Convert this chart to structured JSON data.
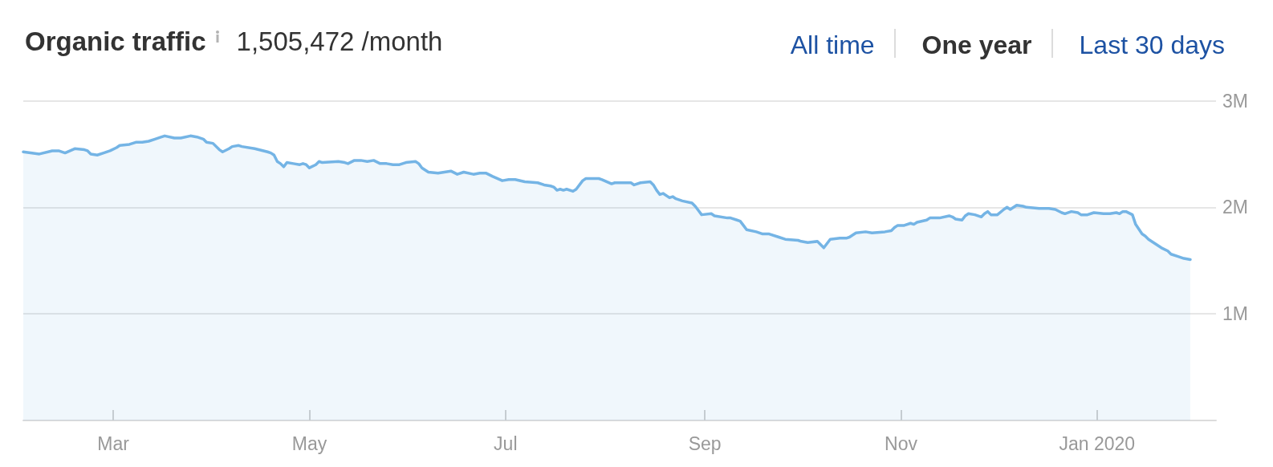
{
  "chart_data": {
    "type": "area",
    "title": "Organic traffic",
    "subtitle": "1,505,472 /month",
    "annotations": [
      "All time",
      "One year",
      "Last 30 days"
    ],
    "color": "#74b4e5",
    "x": [
      "2019-02-01",
      "2019-02-06",
      "2019-02-10",
      "2019-02-12",
      "2019-02-14",
      "2019-02-17",
      "2019-02-20",
      "2019-02-21",
      "2019-02-22",
      "2019-02-24",
      "2019-02-26",
      "2019-02-28",
      "2019-03-02",
      "2019-03-03",
      "2019-03-06",
      "2019-03-08",
      "2019-03-10",
      "2019-03-12",
      "2019-03-14",
      "2019-03-16",
      "2019-03-17",
      "2019-03-20",
      "2019-03-22",
      "2019-03-25",
      "2019-03-27",
      "2019-03-29",
      "2019-03-30",
      "2019-04-01",
      "2019-04-03",
      "2019-04-04",
      "2019-04-06",
      "2019-04-07",
      "2019-04-09",
      "2019-04-10",
      "2019-04-14",
      "2019-04-18",
      "2019-04-19",
      "2019-04-20",
      "2019-04-21",
      "2019-04-22",
      "2019-04-23",
      "2019-04-24",
      "2019-04-26",
      "2019-04-28",
      "2019-04-29",
      "2019-04-30",
      "2019-05-01",
      "2019-05-03",
      "2019-05-04",
      "2019-05-05",
      "2019-05-10",
      "2019-05-12",
      "2019-05-13",
      "2019-05-15",
      "2019-05-17",
      "2019-05-19",
      "2019-05-21",
      "2019-05-23",
      "2019-05-25",
      "2019-05-27",
      "2019-05-29",
      "2019-05-31",
      "2019-06-03",
      "2019-06-04",
      "2019-06-05",
      "2019-06-07",
      "2019-06-10",
      "2019-06-12",
      "2019-06-14",
      "2019-06-16",
      "2019-06-18",
      "2019-06-21",
      "2019-06-23",
      "2019-06-25",
      "2019-06-27",
      "2019-06-30",
      "2019-07-02",
      "2019-07-04",
      "2019-07-07",
      "2019-07-11",
      "2019-07-13",
      "2019-07-15",
      "2019-07-16",
      "2019-07-17",
      "2019-07-18",
      "2019-07-19",
      "2019-07-20",
      "2019-07-22",
      "2019-07-23",
      "2019-07-25",
      "2019-07-26",
      "2019-07-30",
      "2019-07-31",
      "2019-08-03",
      "2019-08-04",
      "2019-08-09",
      "2019-08-10",
      "2019-08-12",
      "2019-08-15",
      "2019-08-16",
      "2019-08-17",
      "2019-08-18",
      "2019-08-19",
      "2019-08-21",
      "2019-08-22",
      "2019-08-23",
      "2019-08-25",
      "2019-08-28",
      "2019-08-29",
      "2019-08-30",
      "2019-08-31",
      "2019-09-03",
      "2019-09-04",
      "2019-09-08",
      "2019-09-09",
      "2019-09-11",
      "2019-09-12",
      "2019-09-13",
      "2019-09-14",
      "2019-09-17",
      "2019-09-19",
      "2019-09-21",
      "2019-09-24",
      "2019-09-26",
      "2019-09-30",
      "2019-10-01",
      "2019-10-03",
      "2019-10-06",
      "2019-10-08",
      "2019-10-10",
      "2019-10-13",
      "2019-10-15",
      "2019-10-16",
      "2019-10-18",
      "2019-10-21",
      "2019-10-23",
      "2019-10-27",
      "2019-10-29",
      "2019-10-30",
      "2019-10-31",
      "2019-11-02",
      "2019-11-04",
      "2019-11-05",
      "2019-11-06",
      "2019-11-09",
      "2019-11-10",
      "2019-11-13",
      "2019-11-16",
      "2019-11-17",
      "2019-11-18",
      "2019-11-20",
      "2019-11-21",
      "2019-11-22",
      "2019-11-24",
      "2019-11-26",
      "2019-11-27",
      "2019-11-28",
      "2019-11-29",
      "2019-12-01",
      "2019-12-03",
      "2019-12-04",
      "2019-12-05",
      "2019-12-07",
      "2019-12-09",
      "2019-12-10",
      "2019-12-14",
      "2019-12-17",
      "2019-12-19",
      "2019-12-21",
      "2019-12-22",
      "2019-12-24",
      "2019-12-26",
      "2019-12-27",
      "2019-12-29",
      "2019-12-31",
      "2020-01-03",
      "2020-01-05",
      "2020-01-07",
      "2020-01-08",
      "2020-01-09",
      "2020-01-10",
      "2020-01-12",
      "2020-01-13",
      "2020-01-15",
      "2020-01-16",
      "2020-01-17",
      "2020-01-19",
      "2020-01-21",
      "2020-01-23",
      "2020-01-24",
      "2020-01-26",
      "2020-01-28",
      "2020-01-30"
    ],
    "values": [
      2520000,
      2500000,
      2530000,
      2530000,
      2510000,
      2550000,
      2540000,
      2530000,
      2500000,
      2490000,
      2510000,
      2530000,
      2560000,
      2580000,
      2590000,
      2610000,
      2610000,
      2620000,
      2640000,
      2660000,
      2670000,
      2650000,
      2650000,
      2670000,
      2660000,
      2640000,
      2610000,
      2600000,
      2540000,
      2520000,
      2550000,
      2570000,
      2580000,
      2570000,
      2550000,
      2520000,
      2510000,
      2490000,
      2430000,
      2410000,
      2380000,
      2420000,
      2410000,
      2400000,
      2410000,
      2400000,
      2370000,
      2400000,
      2430000,
      2420000,
      2430000,
      2420000,
      2410000,
      2440000,
      2440000,
      2430000,
      2440000,
      2410000,
      2410000,
      2400000,
      2400000,
      2420000,
      2430000,
      2410000,
      2370000,
      2330000,
      2320000,
      2330000,
      2340000,
      2310000,
      2330000,
      2310000,
      2320000,
      2320000,
      2290000,
      2250000,
      2260000,
      2260000,
      2240000,
      2230000,
      2210000,
      2200000,
      2190000,
      2160000,
      2170000,
      2160000,
      2170000,
      2150000,
      2170000,
      2250000,
      2270000,
      2270000,
      2260000,
      2220000,
      2230000,
      2230000,
      2210000,
      2230000,
      2240000,
      2210000,
      2160000,
      2120000,
      2130000,
      2090000,
      2100000,
      2080000,
      2060000,
      2040000,
      2010000,
      1970000,
      1930000,
      1940000,
      1920000,
      1900000,
      1900000,
      1880000,
      1870000,
      1830000,
      1790000,
      1770000,
      1750000,
      1750000,
      1720000,
      1700000,
      1690000,
      1680000,
      1670000,
      1680000,
      1620000,
      1700000,
      1710000,
      1710000,
      1720000,
      1760000,
      1770000,
      1760000,
      1770000,
      1780000,
      1810000,
      1830000,
      1830000,
      1850000,
      1840000,
      1860000,
      1880000,
      1900000,
      1900000,
      1920000,
      1910000,
      1890000,
      1880000,
      1920000,
      1940000,
      1930000,
      1910000,
      1940000,
      1960000,
      1930000,
      1930000,
      1980000,
      2000000,
      1980000,
      2020000,
      2010000,
      2000000,
      1990000,
      1990000,
      1980000,
      1950000,
      1940000,
      1960000,
      1950000,
      1930000,
      1930000,
      1950000,
      1940000,
      1940000,
      1950000,
      1940000,
      1960000,
      1960000,
      1930000,
      1840000,
      1750000,
      1730000,
      1700000,
      1660000,
      1620000,
      1590000,
      1560000,
      1540000,
      1520000,
      1510000
    ],
    "xlim": [
      "2019-02-01",
      "2020-02-07"
    ],
    "xticks": [
      {
        "value": "2019-03-01",
        "label": "Mar"
      },
      {
        "value": "2019-05-01",
        "label": "May"
      },
      {
        "value": "2019-07-01",
        "label": "Jul"
      },
      {
        "value": "2019-09-01",
        "label": "Sep"
      },
      {
        "value": "2019-11-01",
        "label": "Nov"
      },
      {
        "value": "2020-01-01",
        "label": "Jan 2020"
      }
    ],
    "ylim": [
      0,
      3000000
    ],
    "yticks": [
      {
        "value": 0,
        "label": null
      },
      {
        "value": 1000000,
        "label": "1M"
      },
      {
        "value": 2000000,
        "label": "2M"
      },
      {
        "value": 3000000,
        "label": "3M"
      }
    ],
    "grid": "y"
  }
}
